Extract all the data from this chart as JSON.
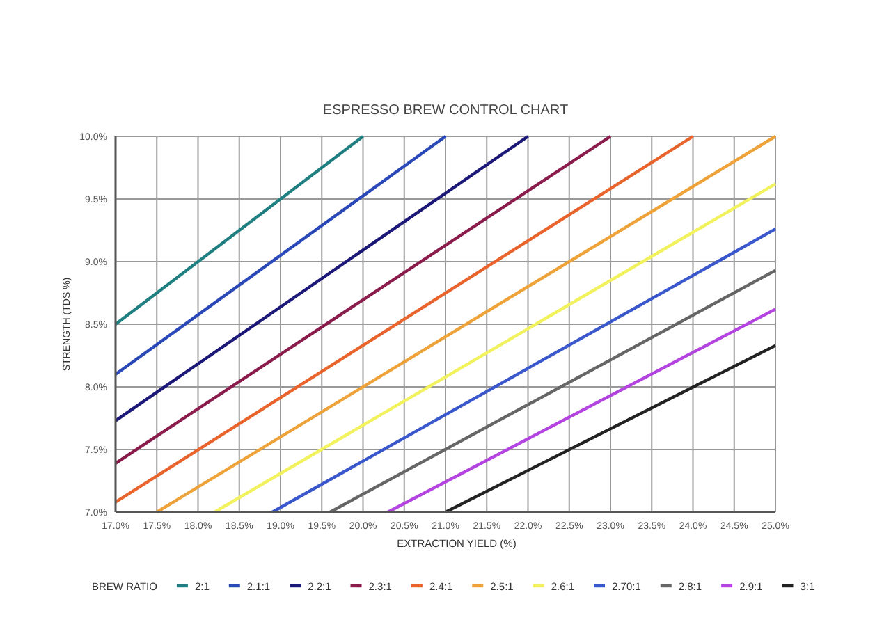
{
  "chart_data": {
    "type": "line",
    "title": "ESPRESSO BREW CONTROL CHART",
    "xlabel": "EXTRACTION YIELD (%)",
    "ylabel": "STRENGTH (TDS %)",
    "legend_title": "BREW RATIO",
    "xlim": [
      17,
      25
    ],
    "ylim": [
      7,
      10
    ],
    "xticks": [
      {
        "value": 17,
        "label": "17.0%"
      },
      {
        "value": 17.5,
        "label": "17.5%"
      },
      {
        "value": 18,
        "label": "18.0%"
      },
      {
        "value": 18.5,
        "label": "18.5%"
      },
      {
        "value": 19,
        "label": "19.0%"
      },
      {
        "value": 19.5,
        "label": "19.5%"
      },
      {
        "value": 20,
        "label": "20.0%"
      },
      {
        "value": 20.5,
        "label": "20.5%"
      },
      {
        "value": 21,
        "label": "21.0%"
      },
      {
        "value": 21.5,
        "label": "21.5%"
      },
      {
        "value": 22,
        "label": "22.0%"
      },
      {
        "value": 22.5,
        "label": "22.5%"
      },
      {
        "value": 23,
        "label": "23.0%"
      },
      {
        "value": 23.5,
        "label": "23.5%"
      },
      {
        "value": 24,
        "label": "24.0%"
      },
      {
        "value": 24.5,
        "label": "24.5%"
      },
      {
        "value": 25,
        "label": "25.0%"
      }
    ],
    "yticks": [
      {
        "value": 7,
        "label": "7.0%"
      },
      {
        "value": 7.5,
        "label": "7.5%"
      },
      {
        "value": 8,
        "label": "8.0%"
      },
      {
        "value": 8.5,
        "label": "8.5%"
      },
      {
        "value": 9,
        "label": "9.0%"
      },
      {
        "value": 9.5,
        "label": "9.5%"
      },
      {
        "value": 10,
        "label": "10.0%"
      }
    ],
    "grid": true,
    "legend": "bottom",
    "series": [
      {
        "name": "2:1",
        "color": "#1f7f80",
        "x": [
          17,
          20
        ],
        "values": [
          8.5,
          10
        ]
      },
      {
        "name": "2.1:1",
        "color": "#2a48b8",
        "x": [
          17,
          21
        ],
        "values": [
          8.1,
          10
        ]
      },
      {
        "name": "2.2:1",
        "color": "#1c1878",
        "x": [
          17,
          22
        ],
        "values": [
          7.73,
          10
        ]
      },
      {
        "name": "2.3:1",
        "color": "#8a1c4c",
        "x": [
          17,
          23
        ],
        "values": [
          7.39,
          10
        ]
      },
      {
        "name": "2.4:1",
        "color": "#e8642c",
        "x": [
          17,
          24
        ],
        "values": [
          7.08,
          10
        ]
      },
      {
        "name": "2.5:1",
        "color": "#eea33a",
        "x": [
          17.5,
          25
        ],
        "values": [
          7,
          10
        ]
      },
      {
        "name": "2.6:1",
        "color": "#f2f25e",
        "x": [
          18.2,
          25
        ],
        "values": [
          7,
          9.62
        ]
      },
      {
        "name": "2.70:1",
        "color": "#3a58cc",
        "x": [
          18.9,
          25
        ],
        "values": [
          7,
          9.26
        ]
      },
      {
        "name": "2.8:1",
        "color": "#666666",
        "x": [
          19.6,
          25
        ],
        "values": [
          7,
          8.93
        ]
      },
      {
        "name": "2.9:1",
        "color": "#b444e0",
        "x": [
          20.3,
          25
        ],
        "values": [
          7,
          8.62
        ]
      },
      {
        "name": "3:1",
        "color": "#222222",
        "x": [
          21,
          25
        ],
        "values": [
          7,
          8.33
        ]
      }
    ]
  }
}
